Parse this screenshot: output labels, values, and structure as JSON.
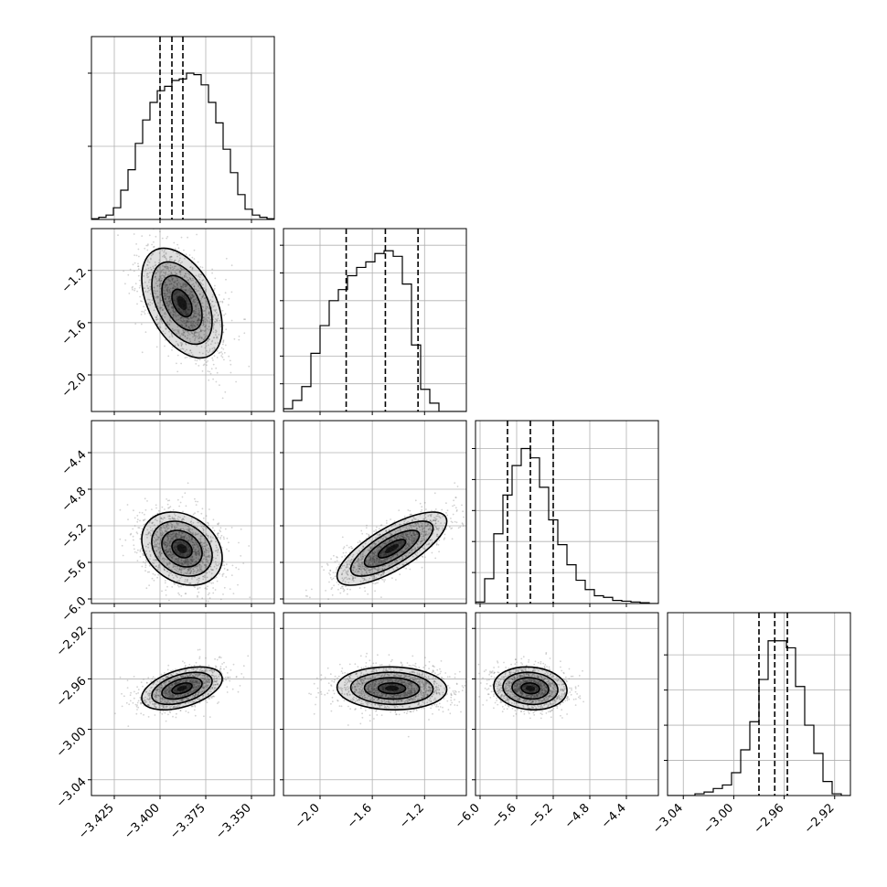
{
  "chart_data": {
    "type": "corner",
    "plot_style": "corner plot: 1D marginal histograms on the diagonal (step outline with dashed 16/50/84% quantile lines), 2D scatter + density + contour panels below the diagonal, grid on",
    "grid": true,
    "params": [
      {
        "range": [
          -3.4375,
          -3.3375
        ],
        "ticks": [
          -3.425,
          -3.4,
          -3.375,
          -3.35
        ],
        "tick_labels": [
          "−3.425",
          "−3.400",
          "−3.375",
          "−3.350"
        ],
        "quantiles": [
          -3.4,
          -3.3935,
          -3.3875
        ],
        "hist_counts": [
          0.5,
          1.5,
          3,
          8,
          20,
          34,
          52,
          68,
          80,
          88,
          91,
          95,
          96,
          100,
          99,
          92,
          80,
          66,
          48,
          32,
          17,
          7,
          3,
          1.5,
          0.5
        ],
        "center": -3.388,
        "sd": 0.011
      },
      {
        "range": [
          -2.28,
          -0.88
        ],
        "ticks": [
          -2.0,
          -1.6,
          -1.2
        ],
        "tick_labels": [
          "−2.0",
          "−1.6",
          "−1.2"
        ],
        "quantiles": [
          -1.8,
          -1.5,
          -1.25
        ],
        "hist_counts": [
          1,
          4,
          9,
          21,
          31,
          40,
          44,
          49,
          52,
          54,
          57,
          58,
          56,
          46,
          24,
          8,
          3,
          0,
          0,
          0
        ],
        "center": -1.45,
        "sd": 0.21
      },
      {
        "range": [
          -6.05,
          -4.05
        ],
        "ticks": [
          -6.0,
          -5.6,
          -5.2,
          -4.8,
          -4.4
        ],
        "tick_labels": [
          "−6.0",
          "−5.6",
          "−5.2",
          "−4.8",
          "−4.4"
        ],
        "quantiles": [
          -5.7,
          -5.45,
          -5.2
        ],
        "hist_counts": [
          1,
          16,
          45,
          70,
          89,
          100,
          94,
          75,
          54,
          38,
          25,
          15,
          9,
          5,
          4,
          2,
          1.5,
          1,
          0.5,
          0
        ],
        "center": -5.45,
        "sd": 0.2
      },
      {
        "range": [
          -3.0525,
          -2.9075
        ],
        "ticks": [
          -3.04,
          -3.0,
          -2.96,
          -2.92
        ],
        "tick_labels": [
          "−3.04",
          "−3.00",
          "−2.96",
          "−2.92"
        ],
        "quantiles": [
          -2.98,
          -2.9675,
          -2.9575
        ],
        "hist_counts": [
          0,
          0,
          0,
          0.5,
          1,
          2,
          3,
          6.5,
          13,
          21,
          33,
          44,
          44,
          42,
          31,
          20,
          12,
          4,
          0.5,
          0
        ],
        "center": -2.9675,
        "sd": 0.0085
      }
    ],
    "correlations": [
      {
        "pair": [
          0,
          1
        ],
        "rho": -0.45
      },
      {
        "pair": [
          0,
          2
        ],
        "rho": -0.25
      },
      {
        "pair": [
          0,
          3
        ],
        "rho": 0.45
      },
      {
        "pair": [
          1,
          2
        ],
        "rho": 0.75
      },
      {
        "pair": [
          1,
          3
        ],
        "rho": -0.05
      },
      {
        "pair": [
          2,
          3
        ],
        "rho": -0.1
      }
    ],
    "hist_ylims": [
      {
        "max": 125,
        "ticks": [
          50,
          100
        ]
      },
      {
        "max": 66,
        "ticks": [
          10,
          20,
          30,
          40,
          50,
          60
        ]
      },
      {
        "max": 118,
        "ticks": [
          20,
          40,
          60,
          80,
          100
        ]
      },
      {
        "max": 52,
        "ticks": [
          10,
          20,
          30,
          40
        ]
      }
    ],
    "contour_levels_sigma": [
      0.5,
      1.0,
      1.5,
      2.0
    ],
    "colors": {
      "points": "#808080",
      "density_dark": "#000000",
      "lines": "#000000"
    }
  }
}
